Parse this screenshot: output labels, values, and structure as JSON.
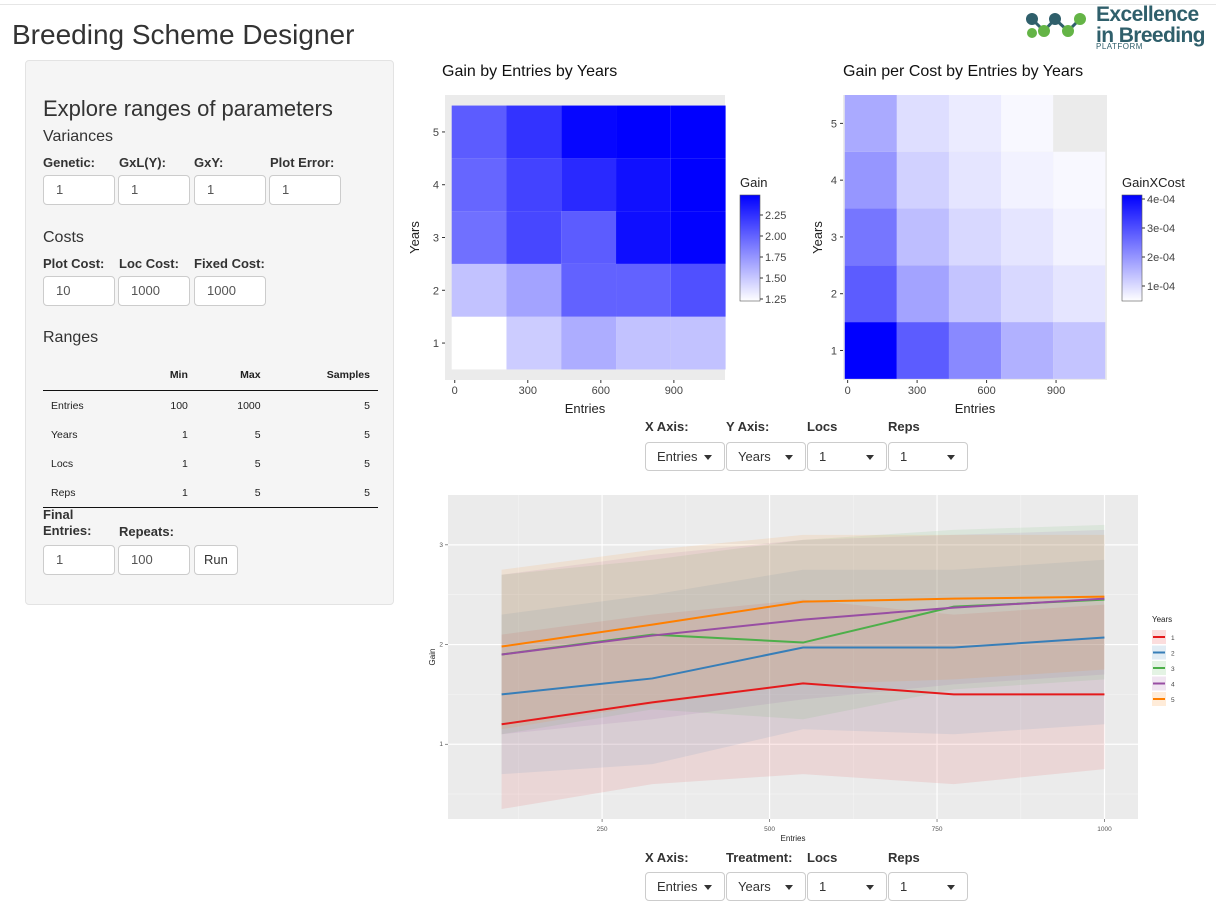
{
  "app": {
    "title": "Breeding Scheme Designer",
    "logo_line1": "Excellence",
    "logo_line2": "in Breeding",
    "logo_sub": "PLATFORM"
  },
  "sidebar": {
    "heading": "Explore ranges of parameters",
    "variances": {
      "title": "Variances",
      "fields": [
        {
          "label": "Genetic:",
          "value": "1"
        },
        {
          "label": "GxL(Y):",
          "value": "1"
        },
        {
          "label": "GxY:",
          "value": "1"
        },
        {
          "label": "Plot Error:",
          "value": "1"
        }
      ]
    },
    "costs": {
      "title": "Costs",
      "fields": [
        {
          "label": "Plot Cost:",
          "value": "10"
        },
        {
          "label": "Loc Cost:",
          "value": "1000"
        },
        {
          "label": "Fixed Cost:",
          "value": "1000"
        }
      ]
    },
    "ranges": {
      "title": "Ranges",
      "columns": [
        "",
        "Min",
        "Max",
        "Samples"
      ],
      "rows": [
        [
          "Entries",
          "100",
          "1000",
          "5"
        ],
        [
          "Years",
          "1",
          "5",
          "5"
        ],
        [
          "Locs",
          "1",
          "5",
          "5"
        ],
        [
          "Reps",
          "1",
          "5",
          "5"
        ]
      ]
    },
    "final": {
      "entries_label_1": "Final",
      "entries_label_2": "Entries:",
      "entries_value": "1",
      "repeats_label": "Repeats:",
      "repeats_value": "100",
      "run_label": "Run"
    }
  },
  "heatmap_controls": {
    "x_label": "X Axis:",
    "x_value": "Entries",
    "y_label": "Y Axis:",
    "y_value": "Years",
    "locs_label": "Locs",
    "locs_value": "1",
    "reps_label": "Reps",
    "reps_value": "1"
  },
  "line_controls": {
    "x_label": "X Axis:",
    "x_value": "Entries",
    "t_label": "Treatment:",
    "t_value": "Years",
    "locs_label": "Locs",
    "locs_value": "1",
    "reps_label": "Reps",
    "reps_value": "1"
  },
  "colors": {
    "panel_bg": "#ebebeb",
    "heat_high": "#0000ff",
    "heat_low": "#ffffff",
    "series": [
      "#e41a1c",
      "#377eb8",
      "#4daf4a",
      "#984ea3",
      "#ff7f00"
    ]
  },
  "chart_data": [
    {
      "type": "heatmap",
      "title": "Gain by Entries by Years",
      "xlabel": "Entries",
      "ylabel": "Years",
      "x": [
        100,
        325,
        550,
        775,
        1000
      ],
      "y": [
        1,
        2,
        3,
        4,
        5
      ],
      "x_ticks": [
        0,
        300,
        600,
        900
      ],
      "y_ticks": [
        1,
        2,
        3,
        4,
        5
      ],
      "legend_title": "Gain",
      "legend_ticks": [
        "2.25",
        "2.00",
        "1.75",
        "1.50",
        "1.25"
      ],
      "range": [
        1.2,
        2.45
      ],
      "values": [
        [
          1.2,
          1.45,
          1.6,
          1.5,
          1.5
        ],
        [
          1.5,
          1.65,
          1.97,
          1.97,
          2.06
        ],
        [
          1.9,
          2.1,
          2.0,
          2.38,
          2.44
        ],
        [
          1.95,
          2.12,
          2.25,
          2.37,
          2.45
        ],
        [
          2.0,
          2.2,
          2.42,
          2.45,
          2.47
        ]
      ]
    },
    {
      "type": "heatmap",
      "title": "Gain per Cost by Entries by Years",
      "xlabel": "Entries",
      "ylabel": "Years",
      "x": [
        100,
        325,
        550,
        775,
        1000
      ],
      "y": [
        1,
        2,
        3,
        4,
        5
      ],
      "x_ticks": [
        0,
        300,
        600,
        900
      ],
      "y_ticks": [
        1,
        2,
        3,
        4,
        5
      ],
      "legend_title": "GainXCost",
      "legend_ticks": [
        "4e-04",
        "3e-04",
        "2e-04",
        "1e-04"
      ],
      "range": [
        1e-05,
        0.0004
      ],
      "values": [
        [
          0.0004,
          0.00026,
          0.00019,
          0.00013,
          0.0001
        ],
        [
          0.00026,
          0.00015,
          0.0001,
          7e-05,
          5e-05
        ],
        [
          0.00022,
          0.00011,
          7e-05,
          5e-05,
          3e-05
        ],
        [
          0.00017,
          8e-05,
          5e-05,
          3e-05,
          2e-05
        ],
        [
          0.00014,
          6e-05,
          4e-05,
          2e-05,
          null
        ]
      ]
    },
    {
      "type": "line",
      "xlabel": "Entries",
      "ylabel": "Gain",
      "legend_title": "Years",
      "x": [
        100,
        325,
        550,
        775,
        1000
      ],
      "xlim": [
        20,
        1050
      ],
      "ylim": [
        0.25,
        3.5
      ],
      "x_ticks": [
        250,
        500,
        750,
        1000
      ],
      "y_ticks": [
        1,
        2,
        3
      ],
      "series": [
        {
          "name": "1",
          "values": [
            1.2,
            1.42,
            1.61,
            1.5,
            1.5
          ],
          "lower": [
            0.35,
            0.6,
            0.7,
            0.6,
            0.75
          ],
          "upper": [
            2.1,
            2.3,
            2.45,
            2.3,
            2.4
          ]
        },
        {
          "name": "2",
          "values": [
            1.5,
            1.66,
            1.97,
            1.97,
            2.07
          ],
          "lower": [
            0.7,
            0.8,
            1.15,
            1.1,
            1.2
          ],
          "upper": [
            2.3,
            2.5,
            2.75,
            2.75,
            2.85
          ]
        },
        {
          "name": "3",
          "values": [
            1.9,
            2.1,
            2.02,
            2.38,
            2.45
          ],
          "lower": [
            1.1,
            1.35,
            1.25,
            1.55,
            1.65
          ],
          "upper": [
            2.7,
            2.85,
            3.05,
            3.15,
            3.2
          ]
        },
        {
          "name": "4",
          "values": [
            1.9,
            2.09,
            2.25,
            2.37,
            2.46
          ],
          "lower": [
            1.1,
            1.25,
            1.45,
            1.6,
            1.7
          ],
          "upper": [
            2.7,
            2.9,
            3.05,
            3.1,
            3.15
          ]
        },
        {
          "name": "5",
          "values": [
            1.98,
            2.2,
            2.43,
            2.46,
            2.48
          ],
          "lower": [
            1.15,
            1.4,
            1.6,
            1.65,
            1.75
          ],
          "upper": [
            2.75,
            2.95,
            3.1,
            3.1,
            3.1
          ]
        }
      ]
    }
  ]
}
